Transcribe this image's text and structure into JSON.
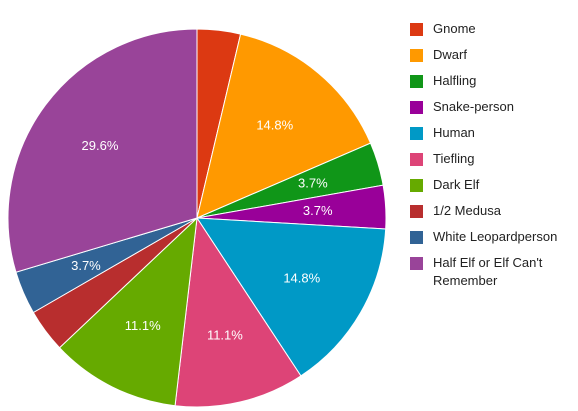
{
  "chart_data": {
    "type": "pie",
    "title": "",
    "legend_position": "right",
    "slices": [
      {
        "label": "Gnome",
        "value": 3.7,
        "color": "#dc3912",
        "data_label": ""
      },
      {
        "label": "Dwarf",
        "value": 14.8,
        "color": "#ff9900",
        "data_label": "14.8%"
      },
      {
        "label": "Halfling",
        "value": 3.7,
        "color": "#109618",
        "data_label": "3.7%"
      },
      {
        "label": "Snake-person",
        "value": 3.7,
        "color": "#990099",
        "data_label": "3.7%"
      },
      {
        "label": "Human",
        "value": 14.8,
        "color": "#0099c6",
        "data_label": "14.8%"
      },
      {
        "label": "Tiefling",
        "value": 11.1,
        "color": "#dd4477",
        "data_label": "11.1%"
      },
      {
        "label": "Dark Elf",
        "value": 11.1,
        "color": "#66aa00",
        "data_label": "11.1%"
      },
      {
        "label": "1/2 Medusa",
        "value": 3.7,
        "color": "#b82e2e",
        "data_label": ""
      },
      {
        "label": "White Leopardperson",
        "value": 3.7,
        "color": "#316395",
        "data_label": "3.7%"
      },
      {
        "label": "Half Elf or Elf Can't Remember",
        "value": 29.6,
        "color": "#994499",
        "data_label": "29.6%"
      }
    ]
  }
}
